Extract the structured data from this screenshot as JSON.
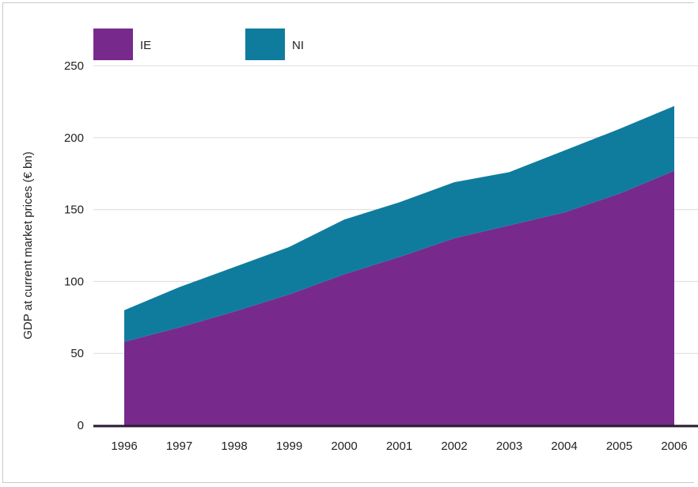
{
  "chart_data": {
    "type": "area",
    "stacked": true,
    "title": "",
    "xlabel": "",
    "ylabel": "GDP at current market prices (€ bn)",
    "x": [
      "1996",
      "1997",
      "1998",
      "1999",
      "2000",
      "2001",
      "2002",
      "2003",
      "2004",
      "2005",
      "2006"
    ],
    "ylim": [
      0,
      250
    ],
    "yticks": [
      "0",
      "50",
      "100",
      "150",
      "200",
      "250"
    ],
    "grid": "horizontal",
    "legend_position": "top-left",
    "series": [
      {
        "name": "IE",
        "color": "#772a8c",
        "values": [
          58,
          68,
          79,
          91,
          105,
          117,
          130,
          139,
          148,
          161,
          177
        ]
      },
      {
        "name": "NI",
        "color": "#0f7c9e",
        "values": [
          22,
          28,
          31,
          33,
          38,
          38,
          39,
          37,
          43,
          45,
          45
        ]
      }
    ]
  }
}
